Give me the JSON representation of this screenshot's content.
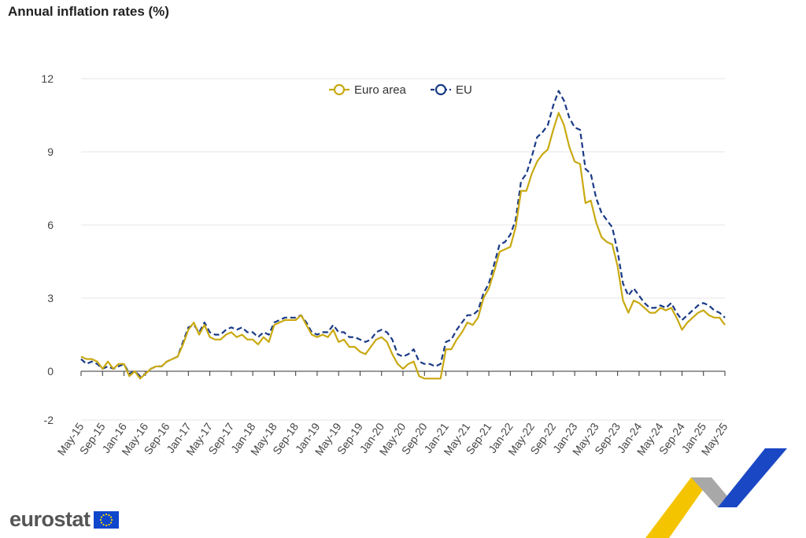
{
  "chart_data": {
    "type": "line",
    "title": "Annual inflation rates (%)",
    "xlabel": "",
    "ylabel": "",
    "ylim": [
      -2,
      12
    ],
    "yticks": [
      -2,
      0,
      3,
      6,
      9,
      12
    ],
    "grid": true,
    "legend_position": "top-center",
    "x_tick_labels": [
      "May-15",
      "Sep-15",
      "Jan-16",
      "May-16",
      "Sep-16",
      "Jan-17",
      "May-17",
      "Sep-17",
      "Jan-18",
      "May-18",
      "Sep-18",
      "Jan-19",
      "May-19",
      "Sep-19",
      "Jan-20",
      "May-20",
      "Sep-20",
      "Jan-21",
      "May-21",
      "Sep-21",
      "Jan-22",
      "May-22",
      "Sep-22",
      "Jan-23",
      "May-23",
      "Sep-23",
      "Jan-24",
      "May-24",
      "Sep-24",
      "Jan-25",
      "May-25"
    ],
    "x_start": "May-15",
    "series": [
      {
        "name": "Euro area",
        "color": "#c9a912",
        "style": "solid",
        "values": [
          0.6,
          0.5,
          0.5,
          0.4,
          0.1,
          0.4,
          0.1,
          0.3,
          0.3,
          -0.2,
          0.0,
          -0.3,
          -0.1,
          0.1,
          0.2,
          0.2,
          0.4,
          0.5,
          0.6,
          1.1,
          1.7,
          2.0,
          1.5,
          1.9,
          1.4,
          1.3,
          1.3,
          1.5,
          1.6,
          1.4,
          1.5,
          1.3,
          1.3,
          1.1,
          1.4,
          1.2,
          1.9,
          2.0,
          2.1,
          2.1,
          2.1,
          2.3,
          1.9,
          1.5,
          1.4,
          1.5,
          1.4,
          1.7,
          1.2,
          1.3,
          1.0,
          1.0,
          0.8,
          0.7,
          1.0,
          1.3,
          1.4,
          1.2,
          0.7,
          0.3,
          0.1,
          0.3,
          0.4,
          -0.2,
          -0.3,
          -0.3,
          -0.3,
          -0.3,
          0.9,
          0.9,
          1.3,
          1.6,
          2.0,
          1.9,
          2.2,
          3.0,
          3.4,
          4.1,
          4.9,
          5.0,
          5.1,
          5.9,
          7.4,
          7.4,
          8.1,
          8.6,
          8.9,
          9.1,
          9.9,
          10.6,
          10.1,
          9.2,
          8.6,
          8.5,
          6.9,
          7.0,
          6.1,
          5.5,
          5.3,
          5.2,
          4.3,
          2.9,
          2.4,
          2.9,
          2.8,
          2.6,
          2.4,
          2.4,
          2.6,
          2.5,
          2.6,
          2.2,
          1.7,
          2.0,
          2.2,
          2.4,
          2.5,
          2.3,
          2.2,
          2.2,
          1.9
        ]
      },
      {
        "name": "EU",
        "color": "#1a3a86",
        "style": "dashed",
        "values": [
          0.5,
          0.3,
          0.4,
          0.3,
          0.1,
          0.2,
          0.1,
          0.2,
          0.3,
          -0.1,
          0.0,
          -0.2,
          -0.1,
          0.1,
          0.2,
          0.2,
          0.4,
          0.5,
          0.6,
          1.2,
          1.8,
          1.9,
          1.6,
          2.0,
          1.6,
          1.5,
          1.5,
          1.7,
          1.8,
          1.7,
          1.8,
          1.6,
          1.6,
          1.4,
          1.6,
          1.5,
          2.0,
          2.1,
          2.2,
          2.2,
          2.2,
          2.3,
          2.0,
          1.6,
          1.5,
          1.6,
          1.6,
          1.9,
          1.6,
          1.6,
          1.4,
          1.4,
          1.3,
          1.2,
          1.3,
          1.6,
          1.7,
          1.6,
          1.3,
          0.7,
          0.6,
          0.7,
          0.9,
          0.4,
          0.3,
          0.3,
          0.2,
          0.3,
          1.2,
          1.3,
          1.7,
          2.0,
          2.3,
          2.3,
          2.5,
          3.2,
          3.6,
          4.4,
          5.2,
          5.3,
          5.6,
          6.2,
          7.8,
          8.1,
          8.8,
          9.6,
          9.8,
          10.1,
          10.9,
          11.5,
          11.1,
          10.4,
          10.0,
          9.9,
          8.3,
          8.1,
          7.1,
          6.5,
          6.2,
          5.9,
          4.9,
          3.6,
          3.1,
          3.4,
          3.1,
          2.8,
          2.6,
          2.6,
          2.7,
          2.6,
          2.8,
          2.4,
          2.1,
          2.3,
          2.5,
          2.7,
          2.8,
          2.7,
          2.5,
          2.4,
          2.2
        ]
      }
    ]
  },
  "brand": {
    "name": "eurostat"
  },
  "colors": {
    "grid": "#e6e6e6",
    "axis": "#333333",
    "flag_blue": "#0e47cb",
    "flag_stars": "#ffdd00",
    "ribbon_yellow": "#f5c400",
    "ribbon_grey": "#a8a8a8",
    "ribbon_blue": "#1a48c4"
  }
}
